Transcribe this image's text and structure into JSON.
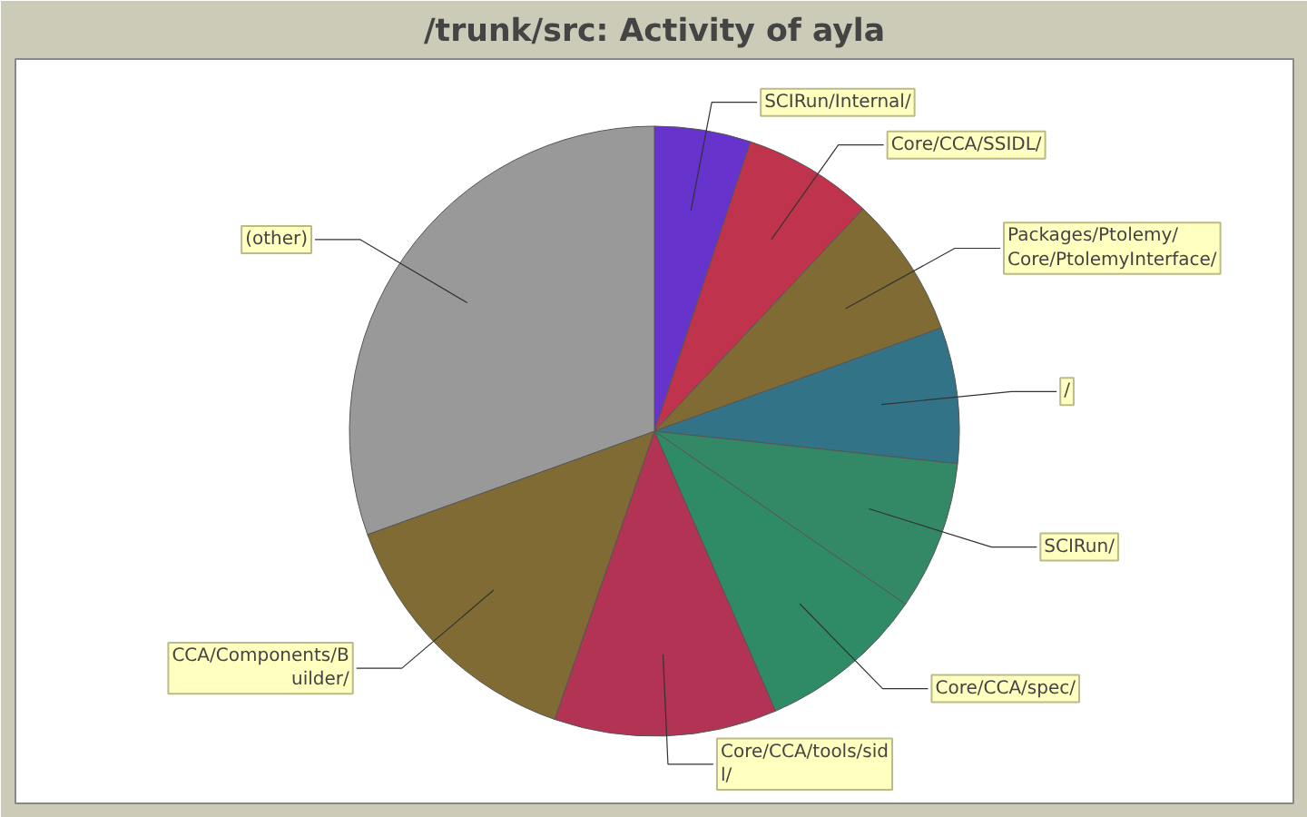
{
  "chart_data": {
    "type": "pie",
    "title": "/trunk/src: Activity of ayla",
    "categories": [
      "SCIRun/Internal/",
      "Core/CCA/SSIDL/",
      "Packages/Ptolemy/\nCore/PtolemyInterface/",
      "/",
      "SCIRun/",
      "Core/CCA/spec/",
      "Core/CCA/tools/sid\nl/",
      "CCA/Components/B\nuilder/",
      "(other)"
    ],
    "values": [
      5.1,
      6.9,
      7.5,
      7.2,
      7.9,
      8.9,
      11.8,
      14.2,
      30.5
    ],
    "colors": [
      "#6633cc",
      "#c0334d",
      "#7f6b33",
      "#337388",
      "#338866",
      "#2f8a66",
      "#b33355",
      "#7f6b33",
      "#999999"
    ]
  }
}
